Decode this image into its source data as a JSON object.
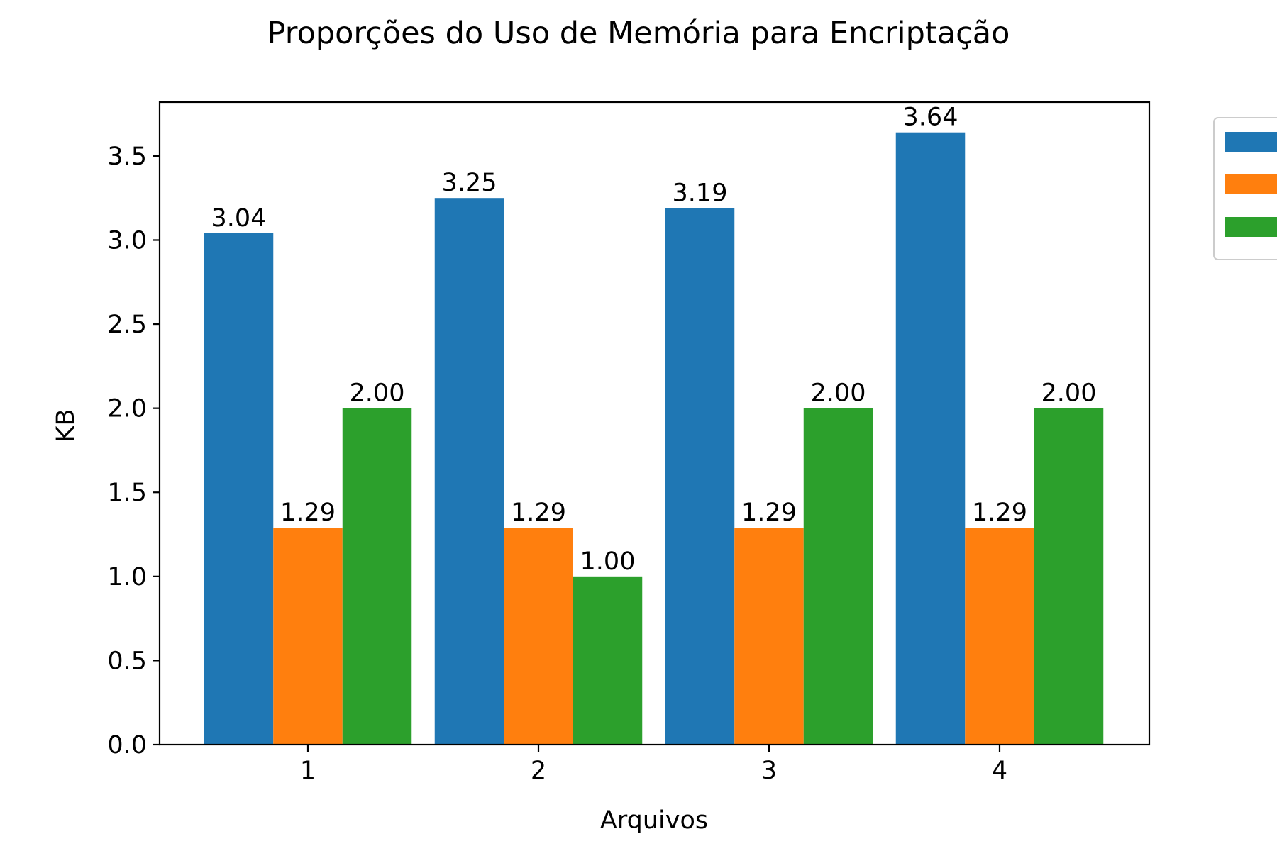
{
  "chart_data": {
    "type": "bar",
    "title": "Proporções do Uso de Memória para Encriptação",
    "xlabel": "Arquivos",
    "ylabel": "KB",
    "categories": [
      "1",
      "2",
      "3",
      "4"
    ],
    "series": [
      {
        "values": [
          3.04,
          3.25,
          3.19,
          3.64
        ],
        "labels": [
          "3.04",
          "3.25",
          "3.19",
          "3.64"
        ],
        "color": "#1f77b4"
      },
      {
        "values": [
          1.29,
          1.29,
          1.29,
          1.29
        ],
        "labels": [
          "1.29",
          "1.29",
          "1.29",
          "1.29"
        ],
        "color": "#ff7f0e"
      },
      {
        "values": [
          2.0,
          1.0,
          2.0,
          2.0
        ],
        "labels": [
          "2.00",
          "1.00",
          "2.00",
          "2.00"
        ],
        "color": "#2ca02c"
      }
    ],
    "ylim": [
      0,
      3.82
    ],
    "yticks": [
      "0.0",
      "0.5",
      "1.0",
      "1.5",
      "2.0",
      "2.5",
      "3.0",
      "3.5"
    ],
    "grid": false,
    "legend": {
      "placement": "upper-right-outside",
      "clipped": true
    }
  }
}
